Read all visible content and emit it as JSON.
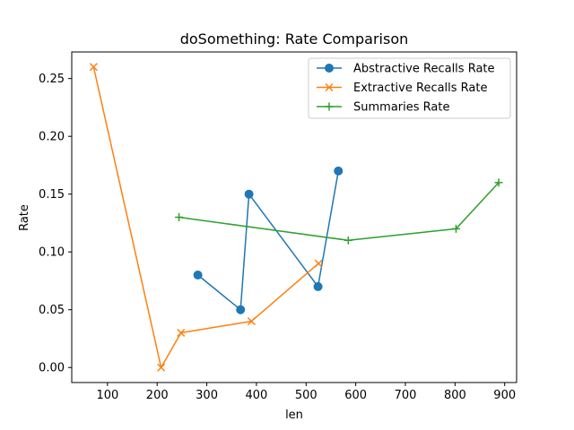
{
  "chart_data": {
    "type": "line",
    "title": "doSomething: Rate Comparison",
    "xlabel": "len",
    "ylabel": "Rate",
    "xlim": [
      28,
      924
    ],
    "ylim": [
      -0.013,
      0.273
    ],
    "x_ticks": [
      100,
      200,
      300,
      400,
      500,
      600,
      700,
      800,
      900
    ],
    "x_tick_labels": [
      "100",
      "200",
      "300",
      "400",
      "500",
      "600",
      "700",
      "800",
      "900"
    ],
    "y_ticks": [
      0.0,
      0.05,
      0.1,
      0.15,
      0.2,
      0.25
    ],
    "y_tick_labels": [
      "0.00",
      "0.05",
      "0.10",
      "0.15",
      "0.20",
      "0.25"
    ],
    "grid": false,
    "legend_position": "top-right",
    "series": [
      {
        "name": "Abstractive Recalls Rate",
        "color": "#1f77b4",
        "marker": "circle",
        "points": [
          {
            "x": 282,
            "y": 0.08
          },
          {
            "x": 368,
            "y": 0.05
          },
          {
            "x": 385,
            "y": 0.15
          },
          {
            "x": 524,
            "y": 0.07
          },
          {
            "x": 565,
            "y": 0.17
          }
        ]
      },
      {
        "name": "Extractive Recalls Rate",
        "color": "#ff7f0e",
        "marker": "x",
        "points": [
          {
            "x": 72,
            "y": 0.26
          },
          {
            "x": 208,
            "y": 0.0
          },
          {
            "x": 248,
            "y": 0.03
          },
          {
            "x": 390,
            "y": 0.04
          },
          {
            "x": 525,
            "y": 0.09
          }
        ]
      },
      {
        "name": "Summaries Rate",
        "color": "#2ca02c",
        "marker": "plus",
        "points": [
          {
            "x": 244,
            "y": 0.13
          },
          {
            "x": 585,
            "y": 0.11
          },
          {
            "x": 802,
            "y": 0.12
          },
          {
            "x": 888,
            "y": 0.16
          }
        ]
      }
    ]
  }
}
